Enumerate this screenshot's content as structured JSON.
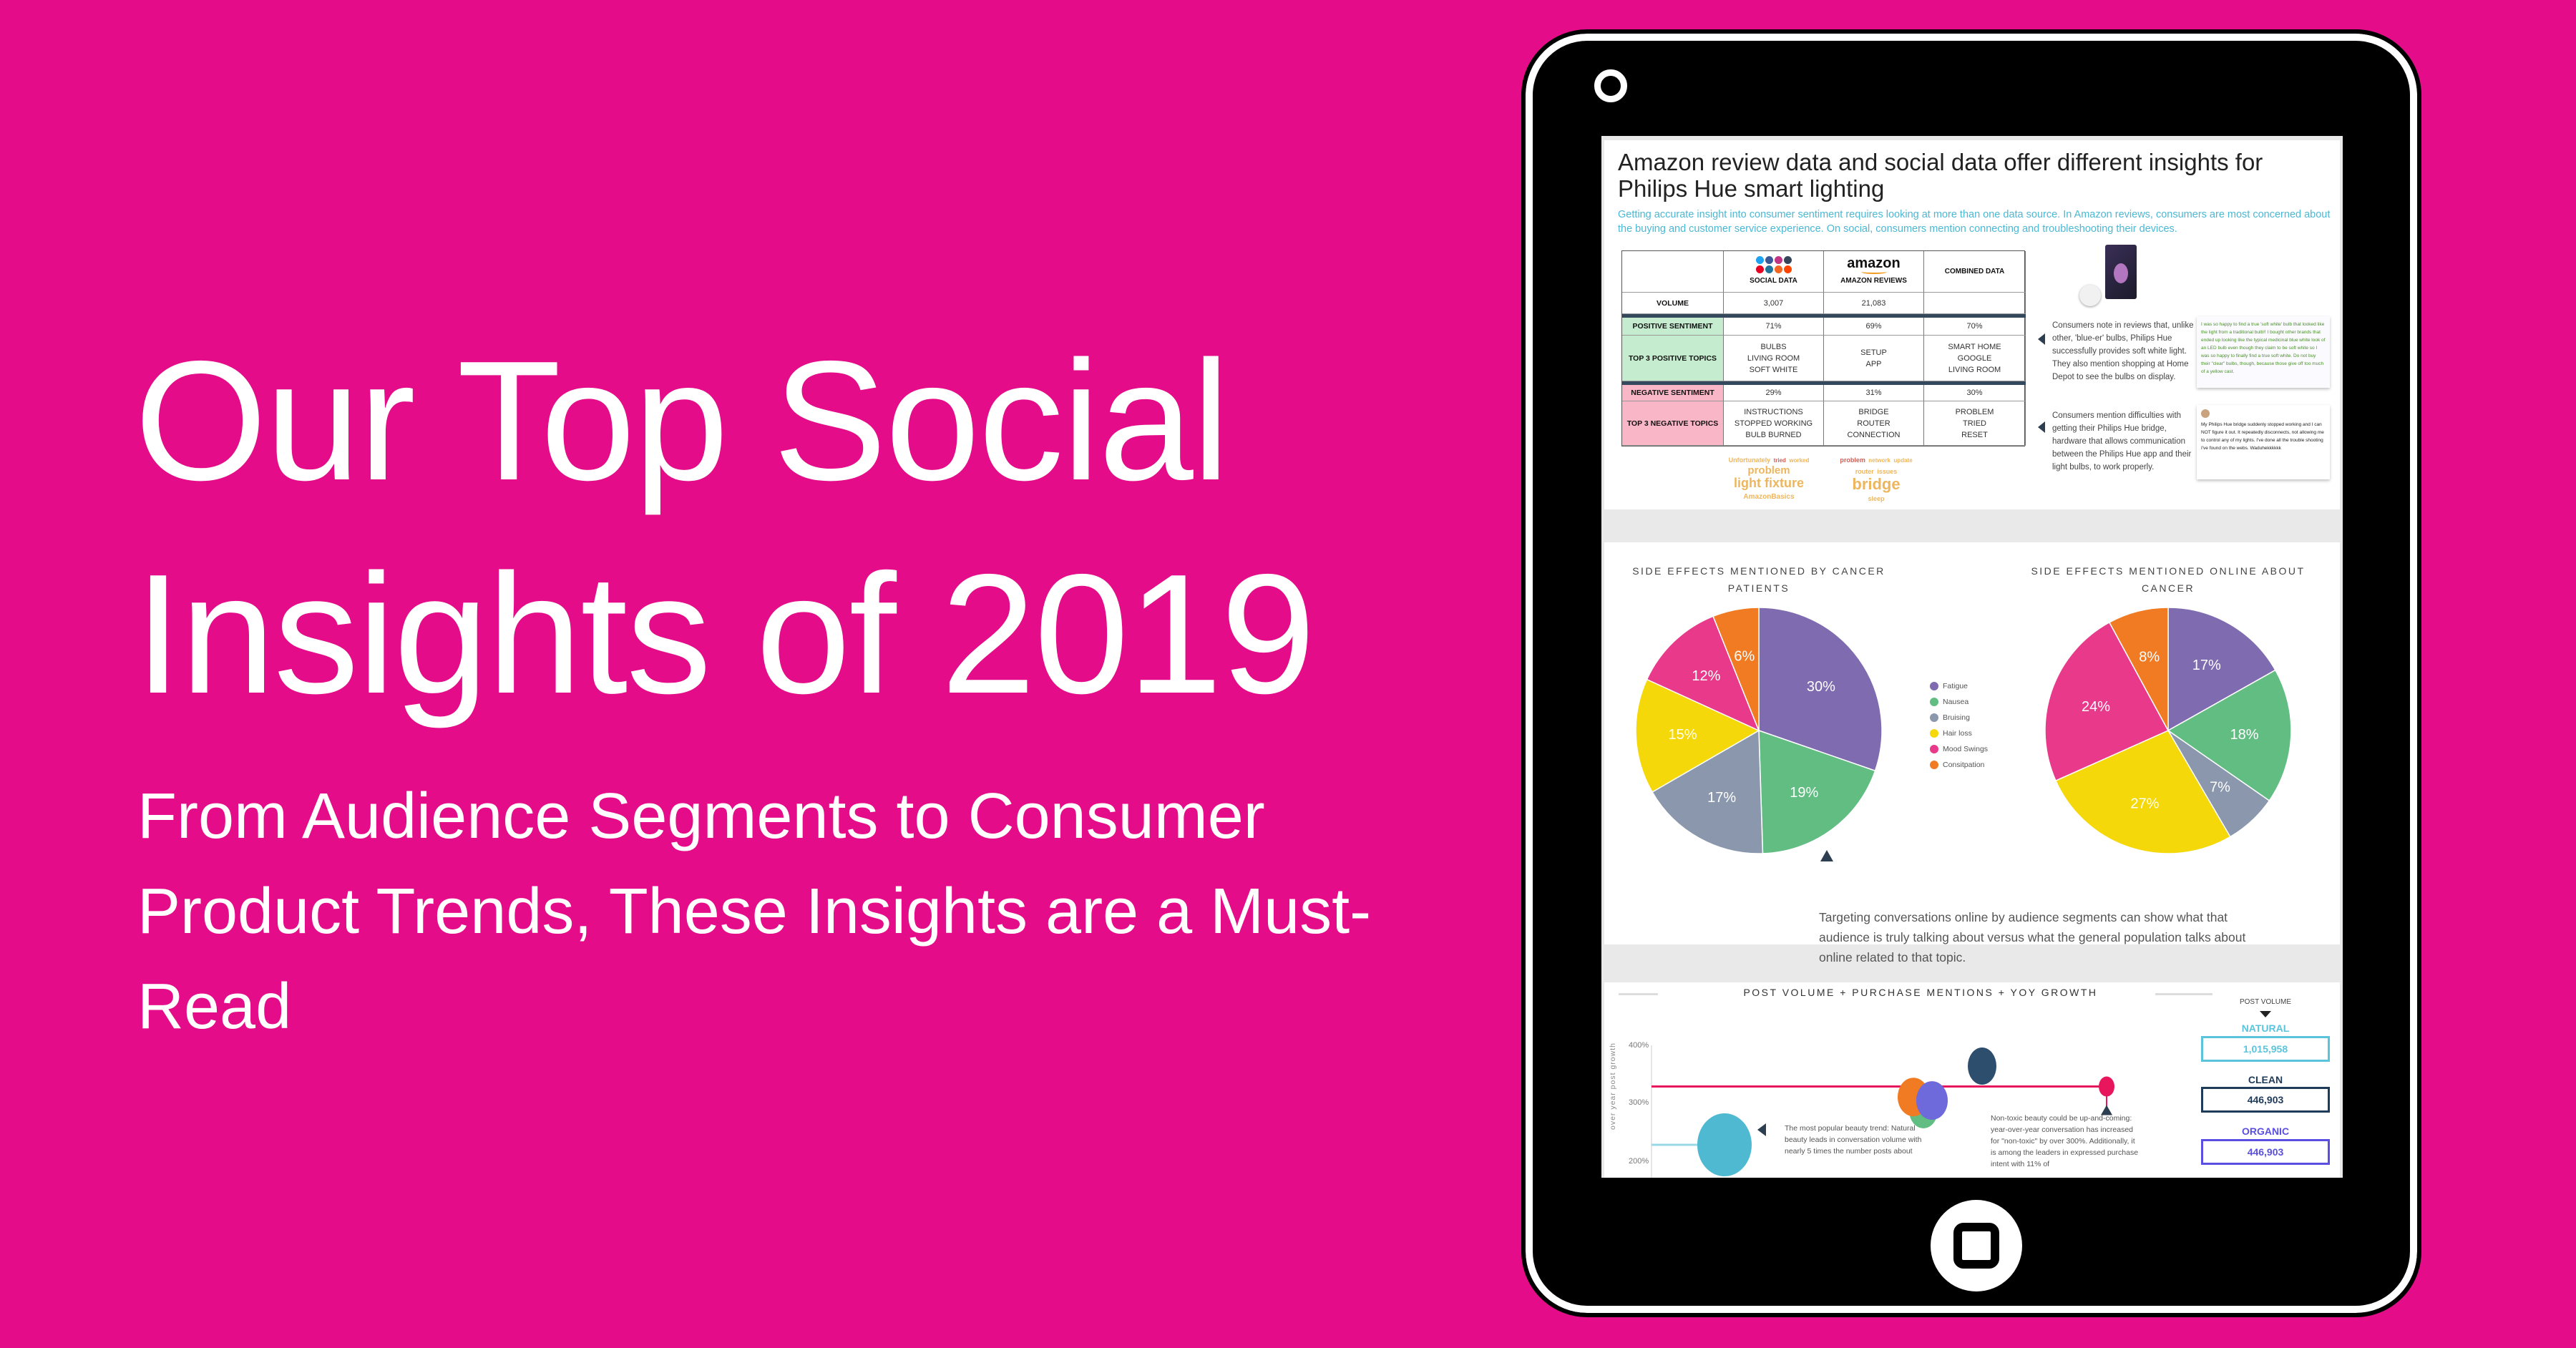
{
  "hero": {
    "title_line1": "Our Top Social",
    "title_line2": "Insights of 2019",
    "subtitle": "From Audience Segments to Consumer Product Trends, These Insights are a Must-Read"
  },
  "colors": {
    "background": "#e40c88",
    "accent_blue": "#4cb8d4",
    "fatigue": "#7e6bb0",
    "nausea": "#62bd82",
    "bruising": "#8a97ad",
    "hair_loss": "#f5d80a",
    "mood_swings": "#e8398a",
    "constipation": "#f07b22"
  },
  "card1": {
    "title": "Amazon review data and social data offer different insights for Philips Hue smart lighting",
    "subtitle": "Getting accurate insight into consumer sentiment requires looking at more than one data source. In Amazon reviews, consumers are most concerned about the buying and customer service experience. On social, consumers mention connecting and troubleshooting their devices.",
    "table": {
      "headers": {
        "social": "SOCIAL DATA",
        "amazon_logo": "amazon",
        "amazon": "AMAZON REVIEWS",
        "combined": "COMBINED DATA"
      },
      "volume": {
        "label": "VOLUME",
        "social": "3,007",
        "amazon": "21,083",
        "combined": ""
      },
      "positive": {
        "label": "POSITIVE SENTIMENT",
        "social": "71%",
        "amazon": "69%",
        "combined": "70%"
      },
      "pos_topics": {
        "label": "TOP 3 POSITIVE TOPICS",
        "social": [
          "BULBS",
          "LIVING ROOM",
          "SOFT WHITE"
        ],
        "amazon": [
          "SETUP",
          "APP"
        ],
        "combined": [
          "SMART HOME",
          "GOOGLE",
          "LIVING ROOM"
        ]
      },
      "negative": {
        "label": "NEGATIVE SENTIMENT",
        "social": "29%",
        "amazon": "31%",
        "combined": "30%"
      },
      "neg_topics": {
        "label": "TOP 3 NEGATIVE TOPICS",
        "social": [
          "INSTRUCTIONS",
          "STOPPED WORKING",
          "BULB BURNED"
        ],
        "amazon": [
          "BRIDGE",
          "ROUTER",
          "CONNECTION"
        ],
        "combined": [
          "PROBLEM",
          "TRIED",
          "RESET"
        ]
      }
    },
    "wordcloud1": [
      "Unfortunately",
      "tried",
      "worked",
      "problem",
      "light fixture",
      "AmazonBasics"
    ],
    "wordcloud2": [
      "problem",
      "network",
      "update",
      "router",
      "issues",
      "bridge",
      "sleep"
    ],
    "note1": "Consumers note in reviews that, unlike other, 'blue-er' bulbs, Philips Hue successfully provides soft white light. They also mention shopping at Home Depot to see the bulbs on display.",
    "note2": "Consumers mention difficulties with getting their Philips Hue bridge, hardware that allows communication between the Philips Hue app and their light bulbs, to work properly.",
    "review_quote": "I was so happy to find a true 'soft white' bulb that looked like the light from a traditional bulb!! I bought other brands that ended up looking like the typical medicinal blue white look of an LED bulb even though they claim to be soft white so I was so happy to finally find a true soft white. Do not buy their \"clear\" bulbs, though, because those give off too much of a yellow cast.",
    "tweet": "My Philips Hue bridge suddenly stopped working and I can NOT figure it out. It repeatedly disconnects, not allowing me to control any of my lights. I've done all the trouble shooting I've found on the webs. Waduhekkkkkk"
  },
  "card2": {
    "text": "Targeting conversations online by audience segments can show what that audience is truly talking about versus what the general population talks about online related to that topic."
  },
  "card3": {
    "title": "POST VOLUME + PURCHASE MENTIONS + YOY GROWTH",
    "post_volume_label": "POST VOLUME",
    "y_axis_title": "over year post growth",
    "y_ticks": [
      "400%",
      "300%",
      "200%"
    ],
    "natural": {
      "label": "NATURAL",
      "value": "1,015,958",
      "color": "#5bc4dc"
    },
    "clean": {
      "label": "CLEAN",
      "value": "446,903",
      "color": "#1f3b5a"
    },
    "organic": {
      "label": "ORGANIC",
      "value": "446,903",
      "color": "#5a4fe0"
    },
    "note1": "The most popular beauty trend: Natural beauty leads in conversation volume with nearly 5 times the number posts about",
    "note2": "Non-toxic beauty could be up-and-coming: year-over-year conversation has increased for \"non-toxic\" by over 300%. Additionally, it is among the leaders in expressed purchase intent with 11% of"
  },
  "chart_data": [
    {
      "type": "pie",
      "title": "SIDE EFFECTS MENTIONED BY CANCER PATIENTS",
      "categories": [
        "Fatigue",
        "Nausea",
        "Bruising",
        "Hair loss",
        "Mood Swings",
        "Consitpation"
      ],
      "values": [
        30,
        19,
        17,
        15,
        12,
        6
      ],
      "labels": [
        "30%",
        "19%",
        "17%",
        "15%",
        "12%",
        "6%"
      ],
      "colors": [
        "#7e6bb0",
        "#62bd82",
        "#8a97ad",
        "#f5d80a",
        "#e8398a",
        "#f07b22"
      ],
      "legend": "between-charts"
    },
    {
      "type": "pie",
      "title": "SIDE EFFECTS MENTIONED ONLINE ABOUT CANCER",
      "categories": [
        "Fatigue",
        "Nausea",
        "Bruising",
        "Hair loss",
        "Mood Swings",
        "Consitpation"
      ],
      "values": [
        17,
        18,
        7,
        27,
        24,
        8
      ],
      "labels": [
        "17%",
        "18%",
        "7%",
        "27%",
        "24%",
        "8%"
      ],
      "colors": [
        "#7e6bb0",
        "#62bd82",
        "#8a97ad",
        "#f5d80a",
        "#e8398a",
        "#f07b22"
      ],
      "legend": "between-charts"
    },
    {
      "type": "scatter",
      "title": "POST VOLUME + PURCHASE MENTIONS + YOY GROWTH",
      "ylabel": "over year post growth",
      "yticks": [
        "200%",
        "300%",
        "400%"
      ],
      "reference_line_y": 330,
      "points": [
        {
          "y": 230,
          "color": "#4fb9d2"
        },
        {
          "y": 312,
          "color": "#f07b22"
        },
        {
          "y": 289,
          "color": "#62bd82"
        },
        {
          "y": 306,
          "color": "#6f6adb"
        },
        {
          "y": 365,
          "color": "#2e4e6e"
        },
        {
          "y": 330,
          "color": "#e8175d"
        }
      ]
    }
  ]
}
